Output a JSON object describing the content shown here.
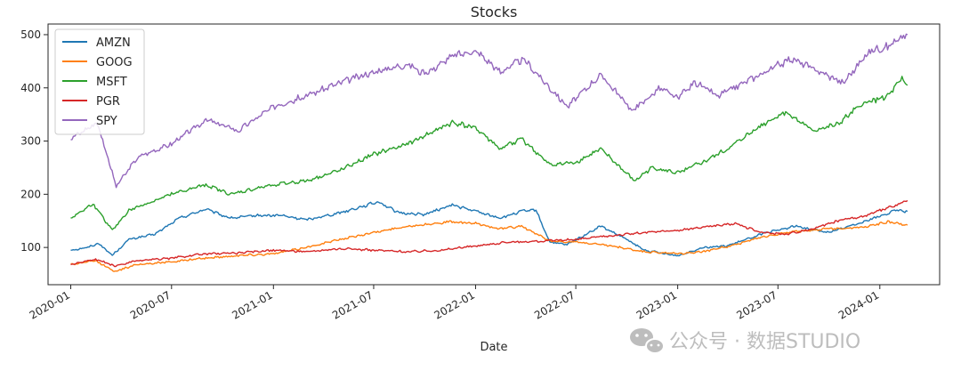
{
  "chart_data": {
    "type": "line",
    "title": "Stocks",
    "xlabel": "Date",
    "ylabel": "",
    "xlim": [
      "2019-11-21",
      "2024-04-18"
    ],
    "ylim": [
      30,
      520
    ],
    "x_ticks": [
      "2020-01",
      "2020-07",
      "2021-01",
      "2021-07",
      "2022-01",
      "2022-07",
      "2023-01",
      "2023-07",
      "2024-01"
    ],
    "y_ticks": [
      100,
      200,
      300,
      400,
      500
    ],
    "grid": false,
    "legend": "upper-left",
    "series": [
      {
        "name": "AMZN",
        "color": "#1f77b4",
        "points": [
          [
            "2020-01-01",
            95
          ],
          [
            "2020-02-01",
            100
          ],
          [
            "2020-02-20",
            108
          ],
          [
            "2020-03-16",
            85
          ],
          [
            "2020-04-15",
            115
          ],
          [
            "2020-06-01",
            125
          ],
          [
            "2020-07-15",
            155
          ],
          [
            "2020-09-01",
            172
          ],
          [
            "2020-10-15",
            155
          ],
          [
            "2020-12-01",
            160
          ],
          [
            "2021-01-15",
            160
          ],
          [
            "2021-03-01",
            152
          ],
          [
            "2021-05-01",
            165
          ],
          [
            "2021-07-10",
            186
          ],
          [
            "2021-08-15",
            165
          ],
          [
            "2021-10-01",
            162
          ],
          [
            "2021-11-20",
            180
          ],
          [
            "2022-01-01",
            168
          ],
          [
            "2022-02-15",
            155
          ],
          [
            "2022-03-25",
            168
          ],
          [
            "2022-04-20",
            170
          ],
          [
            "2022-05-15",
            110
          ],
          [
            "2022-06-15",
            105
          ],
          [
            "2022-08-15",
            140
          ],
          [
            "2022-10-01",
            115
          ],
          [
            "2022-11-01",
            95
          ],
          [
            "2023-01-01",
            84
          ],
          [
            "2023-02-15",
            100
          ],
          [
            "2023-04-01",
            103
          ],
          [
            "2023-06-01",
            125
          ],
          [
            "2023-08-01",
            140
          ],
          [
            "2023-10-01",
            128
          ],
          [
            "2023-12-01",
            148
          ],
          [
            "2024-02-01",
            170
          ],
          [
            "2024-02-20",
            168
          ]
        ]
      },
      {
        "name": "GOOG",
        "color": "#ff7f0e",
        "points": [
          [
            "2020-01-01",
            68
          ],
          [
            "2020-02-15",
            75
          ],
          [
            "2020-03-20",
            55
          ],
          [
            "2020-05-01",
            68
          ],
          [
            "2020-07-01",
            73
          ],
          [
            "2020-09-01",
            80
          ],
          [
            "2020-11-01",
            85
          ],
          [
            "2021-01-01",
            88
          ],
          [
            "2021-03-01",
            100
          ],
          [
            "2021-05-01",
            115
          ],
          [
            "2021-07-01",
            128
          ],
          [
            "2021-09-01",
            140
          ],
          [
            "2021-11-15",
            148
          ],
          [
            "2022-01-01",
            145
          ],
          [
            "2022-02-15",
            135
          ],
          [
            "2022-03-25",
            140
          ],
          [
            "2022-05-15",
            112
          ],
          [
            "2022-07-01",
            110
          ],
          [
            "2022-09-01",
            103
          ],
          [
            "2022-11-01",
            92
          ],
          [
            "2023-01-01",
            88
          ],
          [
            "2023-02-15",
            92
          ],
          [
            "2023-04-15",
            105
          ],
          [
            "2023-06-01",
            120
          ],
          [
            "2023-08-01",
            130
          ],
          [
            "2023-10-01",
            135
          ],
          [
            "2023-12-01",
            138
          ],
          [
            "2024-01-15",
            148
          ],
          [
            "2024-02-20",
            142
          ]
        ]
      },
      {
        "name": "MSFT",
        "color": "#2ca02c",
        "points": [
          [
            "2020-01-01",
            155
          ],
          [
            "2020-02-10",
            182
          ],
          [
            "2020-03-16",
            132
          ],
          [
            "2020-04-15",
            170
          ],
          [
            "2020-07-01",
            200
          ],
          [
            "2020-09-01",
            218
          ],
          [
            "2020-10-15",
            200
          ],
          [
            "2021-01-01",
            218
          ],
          [
            "2021-03-01",
            225
          ],
          [
            "2021-05-01",
            245
          ],
          [
            "2021-07-01",
            275
          ],
          [
            "2021-09-01",
            295
          ],
          [
            "2021-11-20",
            335
          ],
          [
            "2022-01-01",
            325
          ],
          [
            "2022-02-15",
            285
          ],
          [
            "2022-03-25",
            305
          ],
          [
            "2022-05-15",
            255
          ],
          [
            "2022-07-01",
            260
          ],
          [
            "2022-08-15",
            285
          ],
          [
            "2022-10-15",
            225
          ],
          [
            "2022-11-15",
            250
          ],
          [
            "2023-01-01",
            240
          ],
          [
            "2023-02-15",
            260
          ],
          [
            "2023-04-01",
            285
          ],
          [
            "2023-06-01",
            330
          ],
          [
            "2023-07-15",
            355
          ],
          [
            "2023-09-01",
            320
          ],
          [
            "2023-10-15",
            330
          ],
          [
            "2023-12-01",
            370
          ],
          [
            "2024-01-15",
            385
          ],
          [
            "2024-02-10",
            415
          ],
          [
            "2024-02-20",
            405
          ]
        ]
      },
      {
        "name": "PGR",
        "color": "#d62728",
        "points": [
          [
            "2020-01-01",
            68
          ],
          [
            "2020-02-15",
            78
          ],
          [
            "2020-03-20",
            65
          ],
          [
            "2020-05-01",
            75
          ],
          [
            "2020-07-01",
            80
          ],
          [
            "2020-09-01",
            88
          ],
          [
            "2020-11-01",
            90
          ],
          [
            "2021-01-01",
            95
          ],
          [
            "2021-03-01",
            92
          ],
          [
            "2021-05-01",
            98
          ],
          [
            "2021-07-01",
            95
          ],
          [
            "2021-09-01",
            92
          ],
          [
            "2021-11-01",
            95
          ],
          [
            "2022-01-01",
            103
          ],
          [
            "2022-03-01",
            110
          ],
          [
            "2022-05-01",
            112
          ],
          [
            "2022-07-01",
            115
          ],
          [
            "2022-09-01",
            122
          ],
          [
            "2022-11-01",
            128
          ],
          [
            "2023-01-01",
            132
          ],
          [
            "2023-03-01",
            140
          ],
          [
            "2023-04-15",
            145
          ],
          [
            "2023-06-01",
            128
          ],
          [
            "2023-07-15",
            125
          ],
          [
            "2023-09-01",
            135
          ],
          [
            "2023-10-15",
            150
          ],
          [
            "2023-12-01",
            158
          ],
          [
            "2024-02-01",
            180
          ],
          [
            "2024-02-20",
            188
          ]
        ]
      },
      {
        "name": "SPY",
        "color": "#9467bd",
        "points": [
          [
            "2020-01-01",
            305
          ],
          [
            "2020-02-18",
            335
          ],
          [
            "2020-03-23",
            215
          ],
          [
            "2020-05-01",
            270
          ],
          [
            "2020-07-01",
            295
          ],
          [
            "2020-09-01",
            340
          ],
          [
            "2020-10-30",
            320
          ],
          [
            "2021-01-01",
            365
          ],
          [
            "2021-03-01",
            385
          ],
          [
            "2021-05-01",
            410
          ],
          [
            "2021-07-01",
            430
          ],
          [
            "2021-09-01",
            445
          ],
          [
            "2021-10-01",
            425
          ],
          [
            "2021-11-20",
            460
          ],
          [
            "2022-01-01",
            470
          ],
          [
            "2022-02-15",
            430
          ],
          [
            "2022-03-28",
            455
          ],
          [
            "2022-05-15",
            400
          ],
          [
            "2022-06-16",
            365
          ],
          [
            "2022-08-15",
            425
          ],
          [
            "2022-10-12",
            357
          ],
          [
            "2022-11-30",
            400
          ],
          [
            "2023-01-01",
            380
          ],
          [
            "2023-02-01",
            410
          ],
          [
            "2023-03-15",
            385
          ],
          [
            "2023-05-01",
            410
          ],
          [
            "2023-07-25",
            455
          ],
          [
            "2023-10-27",
            410
          ],
          [
            "2023-12-15",
            470
          ],
          [
            "2024-01-15",
            478
          ],
          [
            "2024-02-20",
            500
          ]
        ]
      }
    ]
  },
  "watermark": {
    "text": "公众号 · 数据STUDIO",
    "icon": "wechat-icon",
    "color": "#bdbdbd"
  }
}
